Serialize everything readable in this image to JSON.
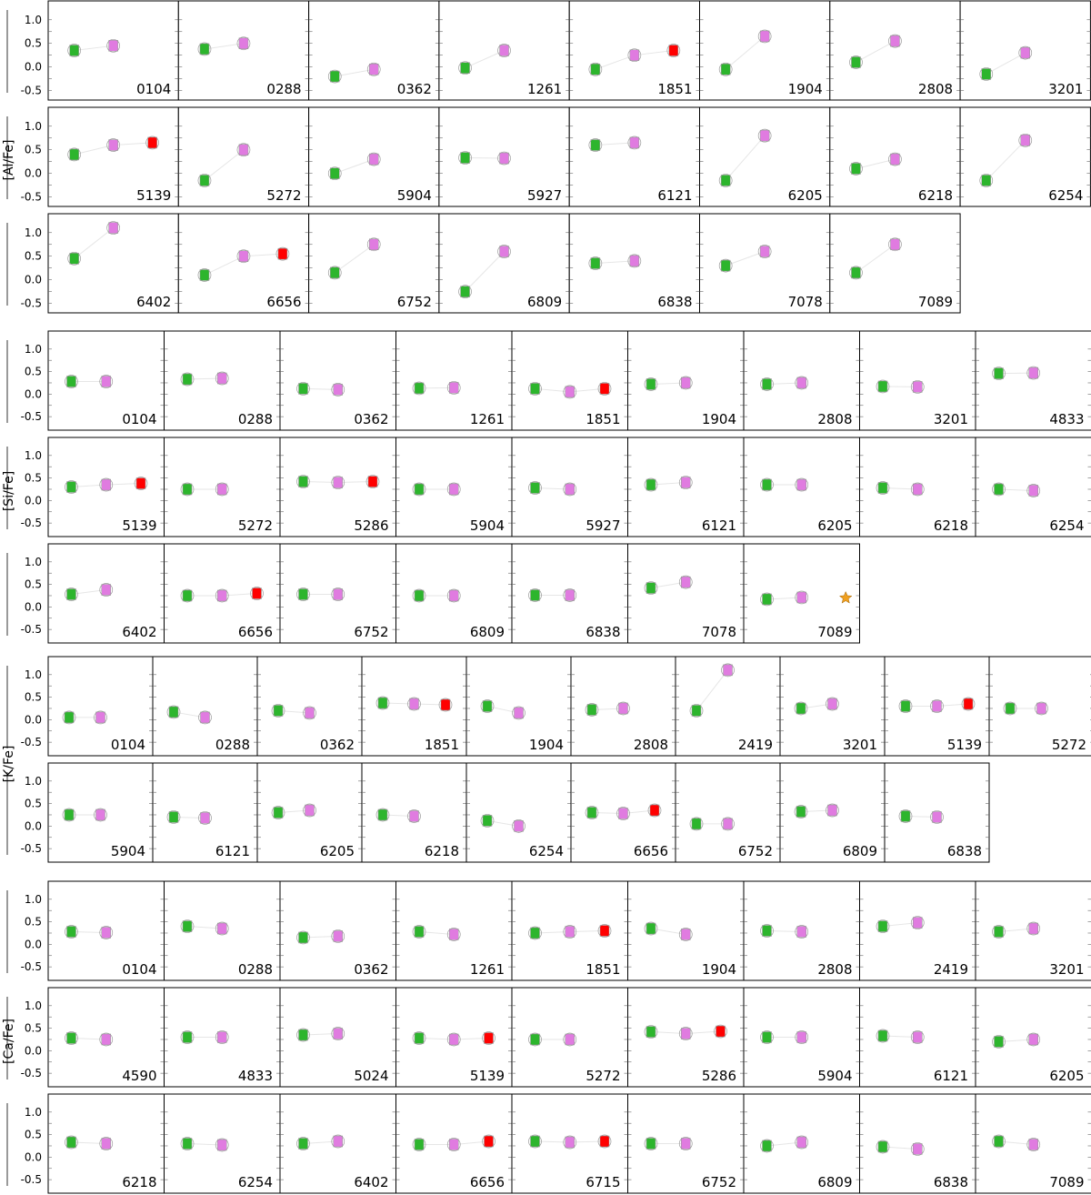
{
  "colors": {
    "first_population": "#2db52d",
    "second_population": "#e07be0",
    "third_population": "#ff0000",
    "star_marker": "#f0a020",
    "frame": "#000000",
    "marker_outline": "#999999",
    "connector": "#e6e6e6"
  },
  "chart_data": [
    {
      "type": "scatter",
      "ylabel": "[Al/Fe]",
      "ylim": [
        -0.7,
        1.4
      ],
      "yticks": [
        "1.0",
        "0.5",
        "0.0",
        "-0.5"
      ],
      "panels": [
        {
          "cluster": "0104",
          "pop1": 0.35,
          "pop2": 0.45
        },
        {
          "cluster": "0288",
          "pop1": 0.38,
          "pop2": 0.5
        },
        {
          "cluster": "0362",
          "pop1": -0.2,
          "pop2": -0.05
        },
        {
          "cluster": "1261",
          "pop1": -0.02,
          "pop2": 0.35
        },
        {
          "cluster": "1851",
          "pop1": -0.05,
          "pop2": 0.25,
          "pop3": 0.35
        },
        {
          "cluster": "1904",
          "pop1": -0.05,
          "pop2": 0.65
        },
        {
          "cluster": "2808",
          "pop1": 0.1,
          "pop2": 0.55
        },
        {
          "cluster": "3201",
          "pop1": -0.15,
          "pop2": 0.3
        },
        {
          "cluster": "5139",
          "pop1": 0.4,
          "pop2": 0.6,
          "pop3": 0.65
        },
        {
          "cluster": "5272",
          "pop1": -0.15,
          "pop2": 0.5
        },
        {
          "cluster": "5904",
          "pop1": 0.0,
          "pop2": 0.3
        },
        {
          "cluster": "5927",
          "pop1": 0.33,
          "pop2": 0.32
        },
        {
          "cluster": "6121",
          "pop1": 0.6,
          "pop2": 0.65
        },
        {
          "cluster": "6205",
          "pop1": -0.15,
          "pop2": 0.8
        },
        {
          "cluster": "6218",
          "pop1": 0.1,
          "pop2": 0.3
        },
        {
          "cluster": "6254",
          "pop1": -0.15,
          "pop2": 0.7
        },
        {
          "cluster": "6402",
          "pop1": 0.45,
          "pop2": 1.1
        },
        {
          "cluster": "6656",
          "pop1": 0.1,
          "pop2": 0.5,
          "pop3": 0.55
        },
        {
          "cluster": "6752",
          "pop1": 0.15,
          "pop2": 0.75
        },
        {
          "cluster": "6809",
          "pop1": -0.25,
          "pop2": 0.6
        },
        {
          "cluster": "6838",
          "pop1": 0.35,
          "pop2": 0.4
        },
        {
          "cluster": "7078",
          "pop1": 0.3,
          "pop2": 0.6
        },
        {
          "cluster": "7089",
          "pop1": 0.15,
          "pop2": 0.75
        }
      ]
    },
    {
      "type": "scatter",
      "ylabel": "[Si/Fe]",
      "ylim": [
        -0.8,
        1.4
      ],
      "yticks": [
        "1.0",
        "0.5",
        "0.0",
        "-0.5"
      ],
      "panels": [
        {
          "cluster": "0104",
          "pop1": 0.28,
          "pop2": 0.28
        },
        {
          "cluster": "0288",
          "pop1": 0.33,
          "pop2": 0.35
        },
        {
          "cluster": "0362",
          "pop1": 0.12,
          "pop2": 0.1
        },
        {
          "cluster": "1261",
          "pop1": 0.13,
          "pop2": 0.14
        },
        {
          "cluster": "1851",
          "pop1": 0.12,
          "pop2": 0.05,
          "pop3": 0.12
        },
        {
          "cluster": "1904",
          "pop1": 0.22,
          "pop2": 0.25
        },
        {
          "cluster": "2808",
          "pop1": 0.22,
          "pop2": 0.25
        },
        {
          "cluster": "3201",
          "pop1": 0.17,
          "pop2": 0.16
        },
        {
          "cluster": "4833",
          "pop1": 0.46,
          "pop2": 0.47
        },
        {
          "cluster": "5139",
          "pop1": 0.3,
          "pop2": 0.35,
          "pop3": 0.38
        },
        {
          "cluster": "5272",
          "pop1": 0.25,
          "pop2": 0.25
        },
        {
          "cluster": "5286",
          "pop1": 0.42,
          "pop2": 0.4,
          "pop3": 0.42
        },
        {
          "cluster": "5904",
          "pop1": 0.25,
          "pop2": 0.25
        },
        {
          "cluster": "5927",
          "pop1": 0.28,
          "pop2": 0.25
        },
        {
          "cluster": "6121",
          "pop1": 0.35,
          "pop2": 0.4
        },
        {
          "cluster": "6205",
          "pop1": 0.35,
          "pop2": 0.35
        },
        {
          "cluster": "6218",
          "pop1": 0.28,
          "pop2": 0.25
        },
        {
          "cluster": "6254",
          "pop1": 0.25,
          "pop2": 0.22
        },
        {
          "cluster": "6402",
          "pop1": 0.28,
          "pop2": 0.38
        },
        {
          "cluster": "6656",
          "pop1": 0.25,
          "pop2": 0.25,
          "pop3": 0.3
        },
        {
          "cluster": "6752",
          "pop1": 0.28,
          "pop2": 0.28
        },
        {
          "cluster": "6809",
          "pop1": 0.25,
          "pop2": 0.25
        },
        {
          "cluster": "6838",
          "pop1": 0.26,
          "pop2": 0.26
        },
        {
          "cluster": "7078",
          "pop1": 0.42,
          "pop2": 0.55
        },
        {
          "cluster": "7089",
          "pop1": 0.17,
          "pop2": 0.21,
          "star": 0.2
        }
      ]
    },
    {
      "type": "scatter",
      "ylabel": "[K/Fe]",
      "ylim": [
        -0.8,
        1.4
      ],
      "yticks": [
        "1.0",
        "0.5",
        "0.0",
        "-0.5"
      ],
      "panels": [
        {
          "cluster": "0104",
          "pop1": 0.05,
          "pop2": 0.05
        },
        {
          "cluster": "0288",
          "pop1": 0.17,
          "pop2": 0.05
        },
        {
          "cluster": "0362",
          "pop1": 0.2,
          "pop2": 0.15
        },
        {
          "cluster": "1851",
          "pop1": 0.37,
          "pop2": 0.35,
          "pop3": 0.33
        },
        {
          "cluster": "1904",
          "pop1": 0.3,
          "pop2": 0.15
        },
        {
          "cluster": "2808",
          "pop1": 0.22,
          "pop2": 0.25
        },
        {
          "cluster": "2419",
          "pop1": 0.2,
          "pop2": 1.1
        },
        {
          "cluster": "3201",
          "pop1": 0.25,
          "pop2": 0.35
        },
        {
          "cluster": "5139",
          "pop1": 0.3,
          "pop2": 0.3,
          "pop3": 0.35
        },
        {
          "cluster": "5272",
          "pop1": 0.25,
          "pop2": 0.25
        },
        {
          "cluster": "5904",
          "pop1": 0.25,
          "pop2": 0.25
        },
        {
          "cluster": "6121",
          "pop1": 0.2,
          "pop2": 0.18
        },
        {
          "cluster": "6205",
          "pop1": 0.3,
          "pop2": 0.35
        },
        {
          "cluster": "6218",
          "pop1": 0.25,
          "pop2": 0.22
        },
        {
          "cluster": "6254",
          "pop1": 0.12,
          "pop2": 0.0
        },
        {
          "cluster": "6656",
          "pop1": 0.3,
          "pop2": 0.28,
          "pop3": 0.35
        },
        {
          "cluster": "6752",
          "pop1": 0.05,
          "pop2": 0.05
        },
        {
          "cluster": "6809",
          "pop1": 0.32,
          "pop2": 0.35
        },
        {
          "cluster": "6838",
          "pop1": 0.22,
          "pop2": 0.2
        }
      ]
    },
    {
      "type": "scatter",
      "ylabel": "[Ca/Fe]",
      "ylim": [
        -0.8,
        1.4
      ],
      "yticks": [
        "1.0",
        "0.5",
        "0.0",
        "-0.5"
      ],
      "panels": [
        {
          "cluster": "0104",
          "pop1": 0.28,
          "pop2": 0.26
        },
        {
          "cluster": "0288",
          "pop1": 0.4,
          "pop2": 0.35
        },
        {
          "cluster": "0362",
          "pop1": 0.15,
          "pop2": 0.18
        },
        {
          "cluster": "1261",
          "pop1": 0.28,
          "pop2": 0.22
        },
        {
          "cluster": "1851",
          "pop1": 0.25,
          "pop2": 0.28,
          "pop3": 0.3
        },
        {
          "cluster": "1904",
          "pop1": 0.35,
          "pop2": 0.22
        },
        {
          "cluster": "2808",
          "pop1": 0.3,
          "pop2": 0.28
        },
        {
          "cluster": "2419",
          "pop1": 0.4,
          "pop2": 0.48
        },
        {
          "cluster": "3201",
          "pop1": 0.28,
          "pop2": 0.35
        },
        {
          "cluster": "4590",
          "pop1": 0.28,
          "pop2": 0.25
        },
        {
          "cluster": "4833",
          "pop1": 0.3,
          "pop2": 0.3
        },
        {
          "cluster": "5024",
          "pop1": 0.35,
          "pop2": 0.38
        },
        {
          "cluster": "5139",
          "pop1": 0.28,
          "pop2": 0.25,
          "pop3": 0.28
        },
        {
          "cluster": "5272",
          "pop1": 0.25,
          "pop2": 0.25
        },
        {
          "cluster": "5286",
          "pop1": 0.42,
          "pop2": 0.38,
          "pop3": 0.43
        },
        {
          "cluster": "5904",
          "pop1": 0.3,
          "pop2": 0.3
        },
        {
          "cluster": "6121",
          "pop1": 0.33,
          "pop2": 0.3
        },
        {
          "cluster": "6205",
          "pop1": 0.2,
          "pop2": 0.25
        },
        {
          "cluster": "6218",
          "pop1": 0.33,
          "pop2": 0.3
        },
        {
          "cluster": "6254",
          "pop1": 0.3,
          "pop2": 0.27
        },
        {
          "cluster": "6402",
          "pop1": 0.3,
          "pop2": 0.35
        },
        {
          "cluster": "6656",
          "pop1": 0.28,
          "pop2": 0.28,
          "pop3": 0.35
        },
        {
          "cluster": "6715",
          "pop1": 0.35,
          "pop2": 0.33,
          "pop3": 0.35
        },
        {
          "cluster": "6752",
          "pop1": 0.3,
          "pop2": 0.3
        },
        {
          "cluster": "6809",
          "pop1": 0.25,
          "pop2": 0.33
        },
        {
          "cluster": "6838",
          "pop1": 0.23,
          "pop2": 0.18
        },
        {
          "cluster": "7089",
          "pop1": 0.35,
          "pop2": 0.28
        }
      ]
    }
  ]
}
